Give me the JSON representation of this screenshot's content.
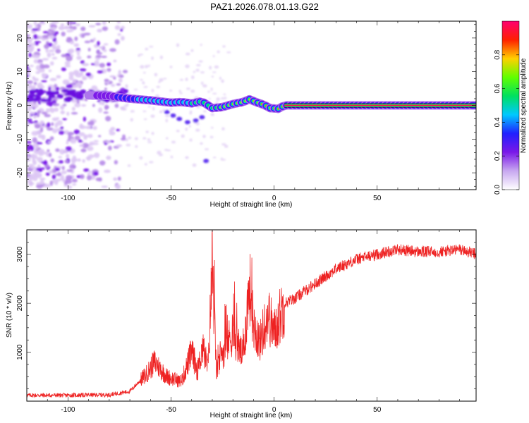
{
  "title": "PAZ1.2026.078.01.13.G22",
  "chart_data": [
    {
      "type": "heatmap",
      "xlabel": "Height of straight line (km)",
      "ylabel": "Frequency (Hz)",
      "xlim": [
        -120,
        98
      ],
      "ylim": [
        -25,
        25
      ],
      "xticks": [
        -100,
        -50,
        0,
        50
      ],
      "yticks": [
        -20,
        -10,
        0,
        10,
        20
      ],
      "colorbar": {
        "label": "Normalized spectral amplitude",
        "range": [
          0,
          1
        ],
        "ticks": [
          "0.0",
          "0.2",
          "0.4",
          "0.6",
          "0.8"
        ],
        "colors": [
          "#ffffff",
          "#c8a8f0",
          "#7a18e8",
          "#2020ff",
          "#00c8ff",
          "#00e060",
          "#60ff00",
          "#ffd000",
          "#ff2000",
          "#ff0070"
        ]
      },
      "ridge": {
        "description": "dominant frequency trace",
        "points": [
          [
            -90,
            3.0
          ],
          [
            -80,
            2.8
          ],
          [
            -70,
            2.0
          ],
          [
            -60,
            1.5
          ],
          [
            -50,
            0.8
          ],
          [
            -45,
            1.0
          ],
          [
            -40,
            0.6
          ],
          [
            -35,
            1.2
          ],
          [
            -30,
            -0.8
          ],
          [
            -25,
            -0.5
          ],
          [
            -20,
            0.4
          ],
          [
            -15,
            1.0
          ],
          [
            -12,
            1.8
          ],
          [
            -8,
            0.8
          ],
          [
            -5,
            0.2
          ],
          [
            -2,
            -0.8
          ],
          [
            2,
            -1.0
          ],
          [
            5,
            0.0
          ],
          [
            10,
            0.0
          ],
          [
            50,
            0.0
          ],
          [
            90,
            0.0
          ],
          [
            98,
            0.0
          ]
        ],
        "amplitude": [
          0.15,
          0.2,
          0.35,
          0.45,
          0.5,
          0.45,
          0.5,
          0.5,
          0.55,
          0.65,
          0.65,
          0.7,
          0.65,
          0.75,
          0.8,
          0.85,
          0.88,
          0.9,
          0.95,
          0.95,
          0.95,
          0.95
        ]
      },
      "noise_region_x": [
        -120,
        -72
      ]
    },
    {
      "type": "line",
      "xlabel": "Height of straight line (km)",
      "ylabel": "SNR (10 * v/v)",
      "xlim": [
        -120,
        98
      ],
      "ylim": [
        0,
        3500
      ],
      "xticks": [
        -100,
        -50,
        0,
        50
      ],
      "yticks": [
        1000,
        2000,
        3000
      ],
      "series": [
        {
          "name": "SNR",
          "color": "#ee2222",
          "x": [
            -120,
            -100,
            -80,
            -70,
            -62,
            -58,
            -52,
            -45,
            -40,
            -37,
            -35,
            -32,
            -30,
            -28,
            -25,
            -20,
            -15,
            -12,
            -10,
            -7,
            -3,
            0,
            5,
            10,
            20,
            30,
            40,
            50,
            60,
            70,
            80,
            90,
            98
          ],
          "y": [
            120,
            120,
            130,
            200,
            550,
            800,
            500,
            400,
            1000,
            600,
            1100,
            700,
            2800,
            600,
            1000,
            1400,
            900,
            2400,
            1600,
            1200,
            1800,
            1400,
            2000,
            2100,
            2400,
            2700,
            2900,
            3000,
            3100,
            3050,
            3050,
            3100,
            3000
          ]
        }
      ]
    }
  ]
}
